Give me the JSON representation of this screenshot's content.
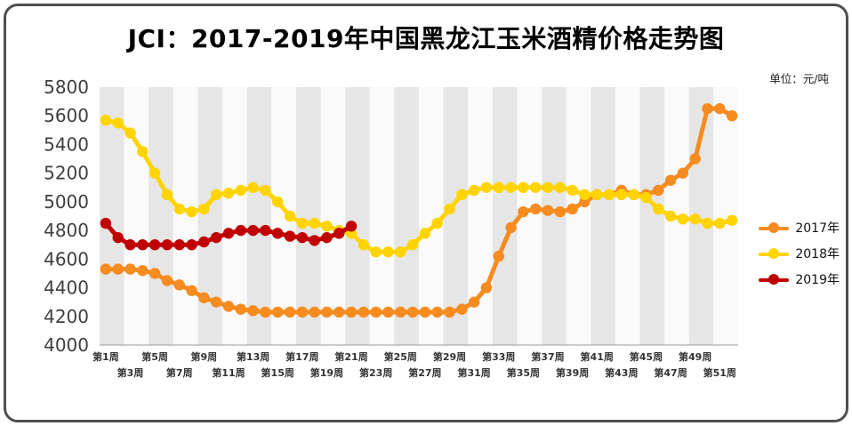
{
  "header": {
    "title": "JCI：2017-2019年中国黑龙江玉米酒精价格走势图",
    "unit_label": "单位：元/吨"
  },
  "chart_data": {
    "type": "line",
    "title": "JCI：2017-2019年中国黑龙江玉米酒精价格走势图",
    "ylabel_unit": "元/吨",
    "weeks": 52,
    "x_tick_format": "第{n}周",
    "x_tick_note": "odd weeks only, staggered on two rows",
    "ylim": [
      4000,
      5800
    ],
    "ytick_step": 200,
    "grid": "off",
    "legend_position": "right",
    "background_stripes": {
      "band_weeks": 2,
      "colors": [
        "#e6e6e6",
        "#fafafa"
      ]
    },
    "axis_text_color": "#3f3f3f",
    "series": [
      {
        "name": "2017年",
        "color": "#F68B1F",
        "values": [
          4530,
          4530,
          4530,
          4520,
          4500,
          4450,
          4420,
          4380,
          4330,
          4300,
          4270,
          4250,
          4240,
          4230,
          4230,
          4230,
          4230,
          4230,
          4230,
          4230,
          4230,
          4230,
          4230,
          4230,
          4230,
          4230,
          4230,
          4230,
          4230,
          4250,
          4300,
          4400,
          4620,
          4820,
          4930,
          4950,
          4940,
          4930,
          4950,
          5000,
          5050,
          5050,
          5080,
          5050,
          5050,
          5080,
          5150,
          5200,
          5300,
          5650,
          5650,
          5600
        ]
      },
      {
        "name": "2018年",
        "color": "#FFD400",
        "values": [
          5570,
          5550,
          5480,
          5350,
          5200,
          5050,
          4950,
          4930,
          4950,
          5050,
          5060,
          5080,
          5100,
          5080,
          5000,
          4900,
          4850,
          4850,
          4830,
          4800,
          4780,
          4700,
          4650,
          4650,
          4650,
          4700,
          4780,
          4850,
          4950,
          5050,
          5080,
          5100,
          5100,
          5100,
          5100,
          5100,
          5100,
          5100,
          5080,
          5050,
          5050,
          5050,
          5050,
          5050,
          5030,
          4950,
          4900,
          4880,
          4880,
          4850,
          4850,
          4870
        ]
      },
      {
        "name": "2019年",
        "color": "#C00000",
        "values": [
          4850,
          4750,
          4700,
          4700,
          4700,
          4700,
          4700,
          4700,
          4720,
          4750,
          4780,
          4800,
          4800,
          4800,
          4780,
          4760,
          4750,
          4730,
          4750,
          4780,
          4830
        ]
      }
    ]
  }
}
